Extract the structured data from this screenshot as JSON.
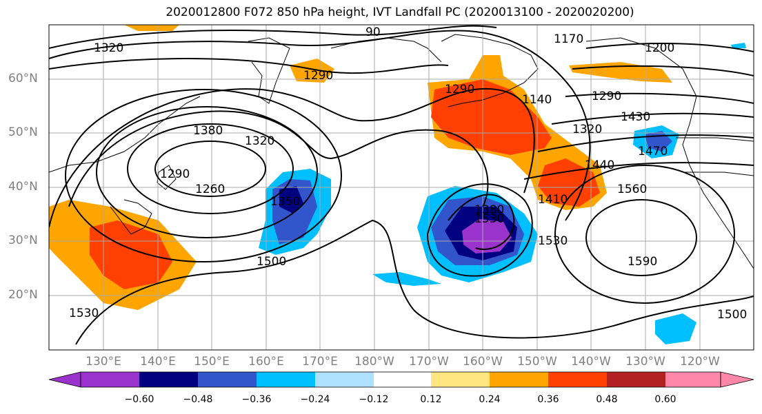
{
  "title": "2020012800 F072 850 hPa height, IVT Landfall PC (2020013100 - 2020020200)",
  "latitude_labels": [
    "60°N",
    "50°N",
    "40°N",
    "30°N",
    "20°N"
  ],
  "longitude_labels": [
    "130°E",
    "140°E",
    "150°E",
    "160°E",
    "170°E",
    "180°W",
    "170°W",
    "160°W",
    "150°W",
    "140°W",
    "130°W",
    "120°W"
  ],
  "colorbar": {
    "tick_labels": [
      "−0.60",
      "−0.48",
      "−0.36",
      "−0.24",
      "−0.12",
      "0.12",
      "0.24",
      "0.36",
      "0.48",
      "0.60"
    ],
    "colors": [
      "#9933cc",
      "#000080",
      "#3355cc",
      "#00bfff",
      "#b0e0ff",
      "#ffffff",
      "#ffe680",
      "#ffa500",
      "#ff4000",
      "#b22222",
      "#ff88aa"
    ]
  },
  "contour_labels": [
    "1320",
    "1290",
    "1380",
    "1320",
    "1290",
    "1260",
    "1350",
    "1500",
    "1530",
    "1170",
    "1200",
    "1140",
    "1290",
    "1320",
    "1410",
    "1440",
    "1430",
    "1470",
    "1560",
    "1530",
    "1590",
    "1500",
    "1380",
    "1530",
    "1290",
    "90"
  ],
  "legend_colors": {
    "outline": "#000000",
    "grid": "#aaaaaa"
  }
}
